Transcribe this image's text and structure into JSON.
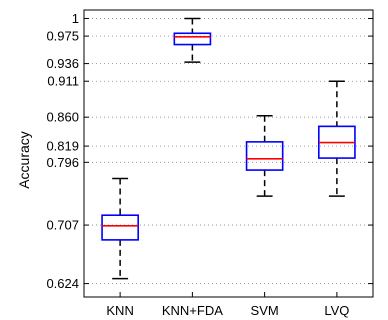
{
  "chart_data": {
    "type": "boxplot",
    "title": "",
    "xlabel": "",
    "ylabel": "Accuracy",
    "ylim": [
      0.605,
      1.012
    ],
    "yticks": [
      1,
      0.975,
      0.936,
      0.911,
      0.86,
      0.819,
      0.796,
      0.707,
      0.624
    ],
    "ytick_labels": [
      "1",
      "0.975",
      "0.936",
      "0.911",
      "0.860",
      "0.819",
      "0.796",
      "0.707",
      "0.624"
    ],
    "grid": "horizontal dotted",
    "categories": [
      "KNN",
      "KNN+FDA",
      "SVM",
      "LVQ"
    ],
    "boxes": [
      {
        "name": "KNN",
        "whisker_low": 0.631,
        "q1": 0.686,
        "median": 0.706,
        "q3": 0.721,
        "whisker_high": 0.773
      },
      {
        "name": "KNN+FDA",
        "whisker_low": 0.938,
        "q1": 0.963,
        "median": 0.974,
        "q3": 0.979,
        "whisker_high": 1.0
      },
      {
        "name": "SVM",
        "whisker_low": 0.748,
        "q1": 0.785,
        "median": 0.801,
        "q3": 0.825,
        "whisker_high": 0.862
      },
      {
        "name": "LVQ",
        "whisker_low": 0.748,
        "q1": 0.802,
        "median": 0.824,
        "q3": 0.847,
        "whisker_high": 0.911
      }
    ],
    "colors": {
      "box": "#0000ff",
      "median": "#ff0000",
      "whisker": "#000000",
      "grid": "#888888"
    }
  }
}
